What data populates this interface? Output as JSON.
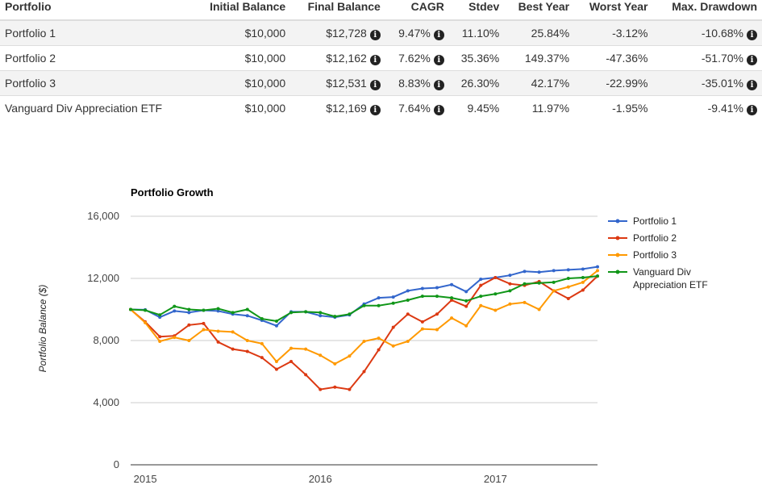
{
  "table": {
    "headers": [
      "Portfolio",
      "Initial Balance",
      "Final Balance",
      "CAGR",
      "Stdev",
      "Best Year",
      "Worst Year",
      "Max. Drawdown"
    ],
    "rows": [
      {
        "name": "Portfolio 1",
        "initial": "$10,000",
        "final": "$12,728",
        "cagr": "9.47%",
        "stdev": "11.10%",
        "best": "25.84%",
        "worst": "-3.12%",
        "drawdown": "-10.68%"
      },
      {
        "name": "Portfolio 2",
        "initial": "$10,000",
        "final": "$12,162",
        "cagr": "7.62%",
        "stdev": "35.36%",
        "best": "149.37%",
        "worst": "-47.36%",
        "drawdown": "-51.70%"
      },
      {
        "name": "Portfolio 3",
        "initial": "$10,000",
        "final": "$12,531",
        "cagr": "8.83%",
        "stdev": "26.30%",
        "best": "42.17%",
        "worst": "-22.99%",
        "drawdown": "-35.01%"
      },
      {
        "name": "Vanguard Div Appreciation ETF",
        "initial": "$10,000",
        "final": "$12,169",
        "cagr": "7.64%",
        "stdev": "9.45%",
        "best": "11.97%",
        "worst": "-1.95%",
        "drawdown": "-9.41%"
      }
    ],
    "info_icon": "info-circle-icon"
  },
  "chart_data": {
    "type": "line",
    "title": "Portfolio Growth",
    "ylabel": "Portfolio Balance ($)",
    "xlabel": "",
    "ylim": [
      0,
      16000
    ],
    "yticks": [
      "0",
      "4,000",
      "8,000",
      "12,000",
      "16,000"
    ],
    "xticks": [
      {
        "label": "2015",
        "index": 1
      },
      {
        "label": "2016",
        "index": 13
      },
      {
        "label": "2017",
        "index": 25
      }
    ],
    "x_count": 33,
    "grid": true,
    "legend_position": "right",
    "series": [
      {
        "name": "Portfolio 1",
        "color": "#3366cc",
        "values": [
          10000,
          9980,
          9500,
          9900,
          9800,
          9950,
          9900,
          9700,
          9600,
          9300,
          8950,
          9850,
          9850,
          9600,
          9500,
          9650,
          10350,
          10750,
          10800,
          11200,
          11350,
          11400,
          11600,
          11150,
          11950,
          12050,
          12200,
          12450,
          12400,
          12500,
          12550,
          12600,
          12750
        ]
      },
      {
        "name": "Portfolio 2",
        "color": "#dc3912",
        "values": [
          10000,
          9200,
          8250,
          8300,
          9000,
          9100,
          7900,
          7450,
          7300,
          6900,
          6150,
          6650,
          5800,
          4850,
          5000,
          4850,
          6000,
          7400,
          8850,
          9700,
          9200,
          9700,
          10600,
          10200,
          11550,
          12050,
          11650,
          11550,
          11800,
          11200,
          10700,
          11250,
          12150
        ]
      },
      {
        "name": "Portfolio 3",
        "color": "#ff9900",
        "values": [
          10000,
          9150,
          7950,
          8200,
          8000,
          8700,
          8600,
          8550,
          8000,
          7800,
          6650,
          7500,
          7450,
          7050,
          6500,
          7000,
          7950,
          8150,
          7650,
          7950,
          8750,
          8700,
          9450,
          8950,
          10250,
          9950,
          10350,
          10450,
          10000,
          11200,
          11450,
          11750,
          12500
        ]
      },
      {
        "name": "Vanguard Div Appreciation ETF",
        "legend_lines": [
          "Vanguard Div",
          "Appreciation ETF"
        ],
        "color": "#109618",
        "values": [
          10000,
          9950,
          9650,
          10200,
          10000,
          9950,
          10050,
          9800,
          10000,
          9400,
          9250,
          9800,
          9850,
          9800,
          9550,
          9700,
          10250,
          10250,
          10400,
          10600,
          10850,
          10850,
          10750,
          10550,
          10850,
          11000,
          11200,
          11650,
          11700,
          11750,
          12000,
          12050,
          12150
        ]
      }
    ]
  }
}
